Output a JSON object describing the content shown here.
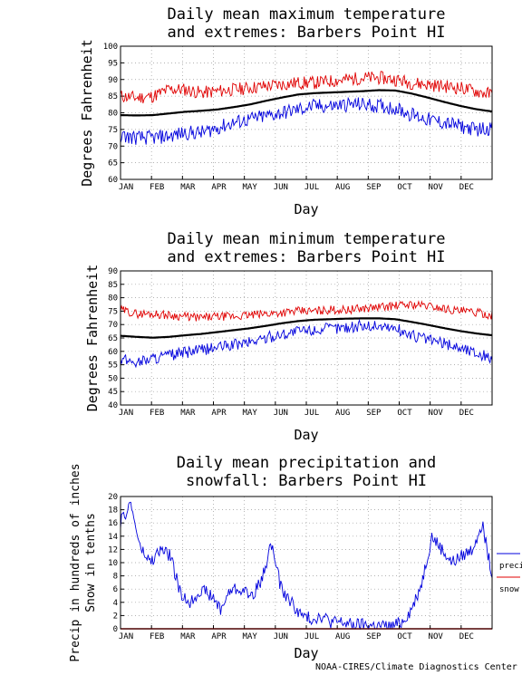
{
  "credit": "NOAA-CIRES/Climate Diagnostics Center",
  "chart_data": [
    {
      "type": "line",
      "title": [
        "Daily mean maximum temperature",
        "and extremes: Barbers Point HI"
      ],
      "xlabel": "Day",
      "ylabel": "Degrees Fahrenheit",
      "xticks": [
        "JAN",
        "FEB",
        "MAR",
        "APR",
        "MAY",
        "JUN",
        "JUL",
        "AUG",
        "SEP",
        "OCT",
        "NOV",
        "DEC"
      ],
      "ylim": [
        60,
        100
      ],
      "yticks": [
        60,
        65,
        70,
        75,
        80,
        85,
        90,
        95,
        100
      ],
      "grid": true,
      "series": [
        {
          "role": "high",
          "color": "#e00000",
          "values": [
            85,
            84.5,
            85,
            87,
            87,
            86,
            86.5,
            87,
            87.5,
            88,
            88.5,
            89,
            89,
            89.5,
            90,
            90.5,
            90.5,
            90,
            89,
            88.5,
            88,
            87.5,
            86.5,
            85.5
          ],
          "noise": 2.0
        },
        {
          "role": "mean",
          "color": "#000000",
          "values": [
            79.3,
            79.2,
            79.3,
            79.8,
            80.3,
            80.6,
            81.0,
            81.7,
            82.5,
            83.6,
            84.6,
            85.5,
            85.9,
            86.1,
            86.3,
            86.5,
            86.8,
            86.7,
            85.8,
            84.6,
            83.3,
            82.1,
            81.1,
            80.4
          ],
          "noise": 0
        },
        {
          "role": "low",
          "color": "#0000dd",
          "values": [
            73,
            72.5,
            72.5,
            73,
            74,
            74,
            75.5,
            77,
            78,
            79,
            80,
            81,
            82,
            82,
            82.5,
            82.5,
            82,
            81.5,
            79.5,
            78,
            77,
            76,
            75,
            75.5
          ],
          "noise": 2.2
        }
      ]
    },
    {
      "type": "line",
      "title": [
        "Daily mean minimum temperature",
        "and extremes: Barbers Point HI"
      ],
      "xlabel": "Day",
      "ylabel": "Degrees Fahrenheit",
      "xticks": [
        "JAN",
        "FEB",
        "MAR",
        "APR",
        "MAY",
        "JUN",
        "JUL",
        "AUG",
        "SEP",
        "OCT",
        "NOV",
        "DEC"
      ],
      "ylim": [
        40,
        90
      ],
      "yticks": [
        40,
        45,
        50,
        55,
        60,
        65,
        70,
        75,
        80,
        85,
        90
      ],
      "grid": true,
      "series": [
        {
          "role": "high",
          "color": "#e00000",
          "values": [
            75.5,
            74,
            74,
            73.5,
            73,
            72.5,
            73,
            73,
            73.5,
            74,
            74.5,
            75,
            75,
            75.5,
            75.5,
            76,
            76.5,
            77,
            77.5,
            77,
            76,
            75,
            74.5,
            73.5
          ],
          "noise": 1.6
        },
        {
          "role": "mean",
          "color": "#000000",
          "values": [
            65.8,
            65.4,
            65.1,
            65.4,
            66.0,
            66.5,
            67.2,
            67.9,
            68.6,
            69.5,
            70.5,
            71.3,
            71.8,
            72.0,
            72.2,
            72.3,
            72.3,
            72.0,
            71.0,
            69.9,
            68.7,
            67.6,
            66.7,
            66.0
          ],
          "noise": 0
        },
        {
          "role": "low",
          "color": "#0000dd",
          "values": [
            57,
            56,
            57.5,
            58.5,
            59.5,
            60.5,
            61.5,
            62.5,
            63.5,
            65,
            66.5,
            67.5,
            68,
            68.5,
            69,
            69.5,
            69.5,
            68.5,
            66,
            64.5,
            63,
            61.5,
            59.5,
            57.5
          ],
          "noise": 2.2
        }
      ]
    },
    {
      "type": "line",
      "title": [
        "Daily mean precipitation and",
        "snowfall: Barbers Point HI"
      ],
      "xlabel": "Day",
      "ylabel": [
        "Precip in hundreds of inches",
        "Snow in tenths"
      ],
      "xticks": [
        "JAN",
        "FEB",
        "MAR",
        "APR",
        "MAY",
        "JUN",
        "JUL",
        "AUG",
        "SEP",
        "OCT",
        "NOV",
        "DEC"
      ],
      "ylim": [
        0,
        20
      ],
      "yticks": [
        0,
        2,
        4,
        6,
        8,
        10,
        12,
        14,
        16,
        18,
        20
      ],
      "grid": true,
      "legend": "right",
      "series": [
        {
          "name": "precip",
          "color": "#0000dd",
          "values": [
            16,
            19,
            12,
            10,
            12,
            11,
            5,
            4,
            6,
            5,
            3,
            6,
            6,
            5,
            7,
            13,
            6,
            4,
            2,
            1.5,
            2,
            1,
            1,
            0.6,
            0.6,
            0.5,
            0.4,
            0.3,
            1,
            3,
            7,
            14,
            12,
            10,
            11,
            12,
            16,
            8
          ],
          "noise": 1.0
        },
        {
          "name": "snow",
          "color": "#e00000",
          "values": [
            0,
            0
          ],
          "noise": 0
        }
      ]
    }
  ]
}
